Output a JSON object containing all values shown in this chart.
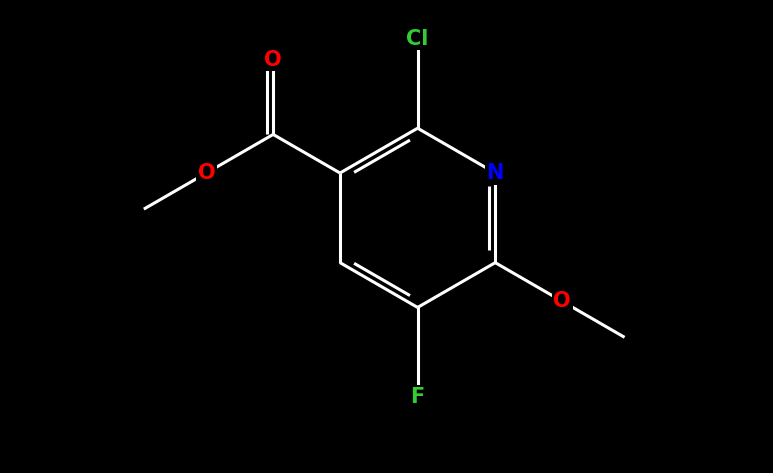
{
  "background_color": "#000000",
  "bond_color": "#ffffff",
  "bond_width": 2.2,
  "atom_colors": {
    "C": "#ffffff",
    "N": "#0000ff",
    "O": "#ff0000",
    "F": "#33cc33",
    "Cl": "#33cc33"
  },
  "font_size": 15,
  "fig_width": 7.73,
  "fig_height": 4.73,
  "dpi": 100
}
